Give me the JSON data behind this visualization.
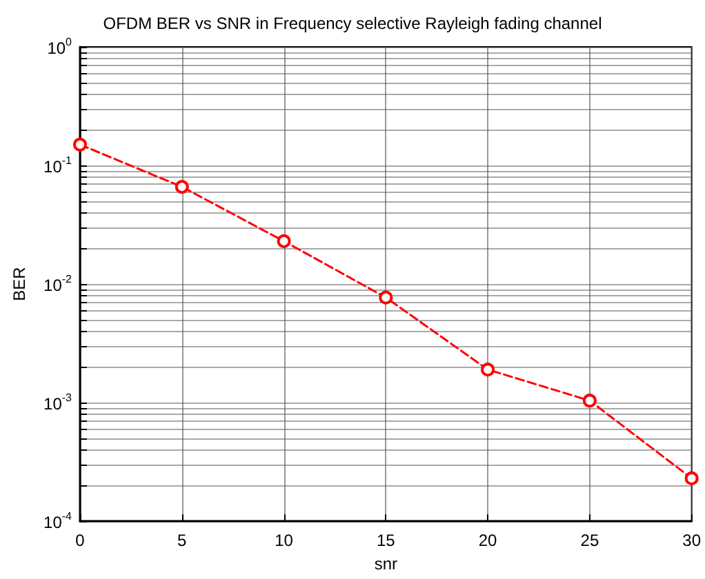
{
  "chart_data": {
    "type": "line",
    "title": "OFDM BER vs SNR in Frequency selective Rayleigh fading channel",
    "xlabel": "snr",
    "ylabel": "BER",
    "x": [
      0,
      5,
      10,
      15,
      20,
      25,
      30
    ],
    "series": [
      {
        "color": "#ff0000",
        "values": [
          0.15,
          0.066,
          0.023,
          0.0077,
          0.0019,
          0.00104,
          0.00023
        ]
      }
    ],
    "xlim": [
      0,
      30
    ],
    "xticks": [
      0,
      5,
      10,
      15,
      20,
      25,
      30
    ],
    "ylim": [
      0.0001,
      1
    ],
    "log": "y",
    "yticks": [
      {
        "value": 0.0001,
        "label": "10$^{-4}$"
      },
      {
        "value": 0.0002,
        "label": null
      },
      {
        "value": 0.0003,
        "label": null
      },
      {
        "value": 0.0004,
        "label": null
      },
      {
        "value": 0.0005,
        "label": null
      },
      {
        "value": 0.0006,
        "label": null
      },
      {
        "value": 0.0007,
        "label": null
      },
      {
        "value": 0.0008,
        "label": null
      },
      {
        "value": 0.0009,
        "label": null
      },
      {
        "value": 0.001,
        "label": "10$^{-3}$"
      },
      {
        "value": 0.002,
        "label": null
      },
      {
        "value": 0.003,
        "label": null
      },
      {
        "value": 0.004,
        "label": null
      },
      {
        "value": 0.005,
        "label": null
      },
      {
        "value": 0.006,
        "label": null
      },
      {
        "value": 0.007,
        "label": null
      },
      {
        "value": 0.008,
        "label": null
      },
      {
        "value": 0.009,
        "label": null
      },
      {
        "value": 0.01,
        "label": "10$^{-2}$"
      },
      {
        "value": 0.02,
        "label": null
      },
      {
        "value": 0.03,
        "label": null
      },
      {
        "value": 0.04,
        "label": null
      },
      {
        "value": 0.05,
        "label": null
      },
      {
        "value": 0.06,
        "label": null
      },
      {
        "value": 0.07,
        "label": null
      },
      {
        "value": 0.08,
        "label": null
      },
      {
        "value": 0.09,
        "label": null
      },
      {
        "value": 0.1,
        "label": "10$^{-1}$"
      },
      {
        "value": 0.2,
        "label": null
      },
      {
        "value": 0.3,
        "label": null
      },
      {
        "value": 0.4,
        "label": null
      },
      {
        "value": 0.5,
        "label": null
      },
      {
        "value": 0.6,
        "label": null
      },
      {
        "value": 0.7,
        "label": null
      },
      {
        "value": 0.8,
        "label": null
      },
      {
        "value": 0.9,
        "label": null
      },
      {
        "value": 1,
        "label": "10$^{0}$"
      }
    ],
    "grid": true,
    "marker": "circle",
    "line_style": "dashed"
  }
}
